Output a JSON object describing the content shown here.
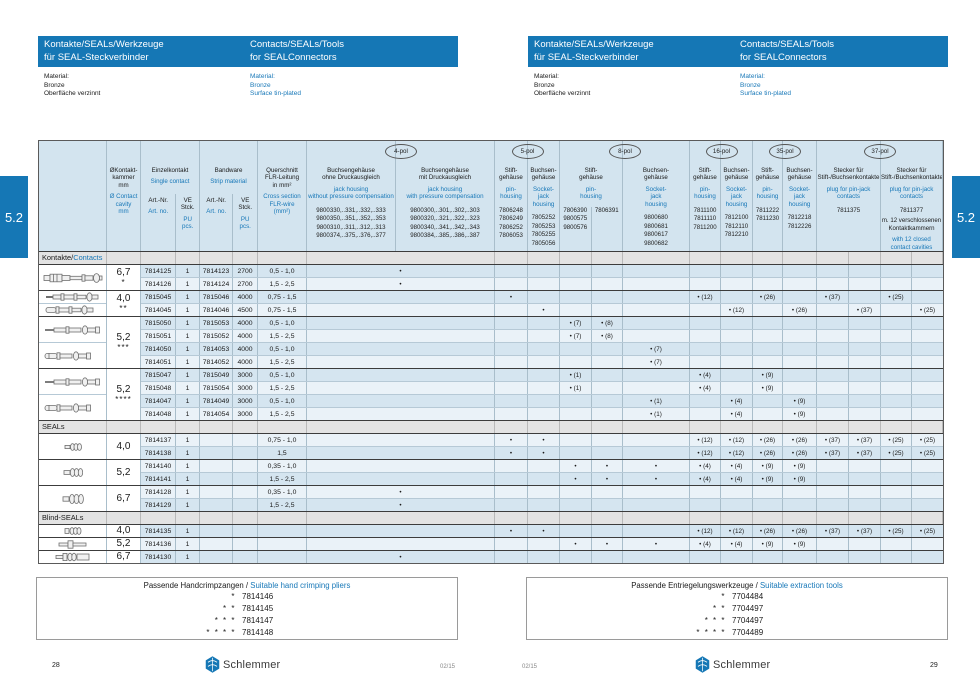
{
  "page": {
    "left_number": "28",
    "right_number": "29",
    "date_code": "02/15",
    "brand": "Schlemmer",
    "section_tab": "5.2"
  },
  "header": {
    "title_de": [
      "Kontakte/SEALs/Werkzeuge",
      "für SEAL-Steckverbinder"
    ],
    "title_en": [
      "Contacts/SEALs/Tools",
      "for SEALConnectors"
    ],
    "material_de": [
      "Material:",
      "Bronze",
      "Oberfläche verzinnt"
    ],
    "material_en": [
      "Material:",
      "Bronze",
      "Surface tin-plated"
    ]
  },
  "table": {
    "columns": {
      "dia_de": [
        "ØKontakt-",
        "kammer",
        "mm"
      ],
      "dia_en": [
        "Ø Contact",
        "cavity",
        "mm"
      ],
      "einzelkontakt_de": "Einzelkontakt",
      "einzelkontakt_en": "Single contact",
      "bandware_de": "Bandware",
      "bandware_en": "Strip material",
      "art_de": "Art.-Nr.",
      "art_en": "Art. no.",
      "ve_de": [
        "VE",
        "Stck."
      ],
      "ve_en": [
        "PU",
        "pcs."
      ],
      "cross_de": [
        "Querschnitt",
        "FLR-Leitung",
        "in mm²"
      ],
      "cross_en": [
        "Cross section",
        "FLR-wire",
        "(mm²)"
      ]
    },
    "pol_groups": [
      {
        "label": "4-pol",
        "cols": [
          {
            "key": "p4a",
            "de": [
              "Buchsengehäuse",
              "ohne Druckausgleich"
            ],
            "en": [
              "jack housing",
              "without pressure compensation"
            ],
            "parts": [
              "9800330,..331,..332,..333",
              "9800350,..351,..352,..353",
              "9800310,..311,..312,..313",
              "9800374,..375,..376,..377"
            ]
          },
          {
            "key": "p4b",
            "de": [
              "Buchsengehäuse",
              "mit Druckausgleich"
            ],
            "en": [
              "jack housing",
              "with pressure compensation"
            ],
            "parts": [
              "9800300,..301,..302,..303",
              "9800320,..321,..322,..323",
              "9800340,..341,..342,..343",
              "9800384,..385,..386,..387"
            ]
          }
        ]
      },
      {
        "label": "5-pol",
        "cols": [
          {
            "key": "p5p",
            "de": [
              "Stift-",
              "gehäuse"
            ],
            "en": [
              "pin-",
              "housing"
            ],
            "parts": [
              "7806248",
              "7806249",
              "7806252",
              "7806053"
            ]
          },
          {
            "key": "p5s",
            "de": [
              "Buchsen-",
              "gehäuse"
            ],
            "en": [
              "Socket-",
              "jack",
              "housing"
            ],
            "parts": [
              "7805252",
              "7805253",
              "7805255",
              "7805056"
            ]
          }
        ]
      },
      {
        "label": "8-pol",
        "cols": [
          {
            "key": "p8p",
            "de": [
              "Stift-",
              "gehäuse"
            ],
            "en": [
              "pin-",
              "housing"
            ],
            "split_parts": [
              [
                "7806390",
                "9800575",
                "9800576"
              ],
              [
                "7806391"
              ]
            ]
          },
          {
            "key": "p8s",
            "de": [
              "Buchsen-",
              "gehäuse"
            ],
            "en": [
              "Socket-",
              "jack",
              "housing"
            ],
            "parts": [
              "9800680",
              "9800681",
              "9800617",
              "9800682"
            ]
          }
        ]
      },
      {
        "label": "16-pol",
        "cols": [
          {
            "key": "p16p",
            "de": [
              "Stift-",
              "gehäuse"
            ],
            "en": [
              "pin-",
              "housing"
            ],
            "parts": [
              "7811100",
              "7811110",
              "7811200"
            ]
          },
          {
            "key": "p16s",
            "de": [
              "Buchsen-",
              "gehäuse"
            ],
            "en": [
              "Socket-",
              "jack",
              "housing"
            ],
            "parts": [
              "7812100",
              "7812110",
              "7812210"
            ]
          }
        ]
      },
      {
        "label": "35-pol",
        "cols": [
          {
            "key": "p35p",
            "de": [
              "Stift-",
              "gehäuse"
            ],
            "en": [
              "pin-",
              "housing"
            ],
            "parts": [
              "7811222",
              "7811230"
            ]
          },
          {
            "key": "p35s",
            "de": [
              "Buchsen-",
              "gehäuse"
            ],
            "en": [
              "Socket-",
              "jack",
              "housing"
            ],
            "parts": [
              "7812218",
              "7812226"
            ]
          }
        ]
      },
      {
        "label": "37-pol",
        "cols": [
          {
            "key": "p37a",
            "de": [
              "Stecker für",
              "Stift-/Buchsenkontakte"
            ],
            "en": [
              "plug for pin-jack",
              "contacts"
            ],
            "parts": [
              "7811375"
            ]
          },
          {
            "key": "p37b",
            "de": [
              "Stecker für",
              "Stift-/Buchsenkontakte"
            ],
            "en": [
              "plug for pin-jack",
              "contacts"
            ],
            "parts": [
              "7811377"
            ],
            "note_de": [
              "m. 12 verschlossenen",
              "Kontaktkammern"
            ],
            "note_en": [
              "with 12 closed",
              "contact cavities"
            ]
          }
        ]
      }
    ],
    "sections": [
      {
        "label_de": "Kontakte/",
        "label_en": "Contacts",
        "groups": [
          {
            "dia": "6,7",
            "stars": "*",
            "blocks": [
              {
                "icon": "contact-socket-large",
                "rows": [
                  {
                    "ek": "7814125",
                    "ekve": "1",
                    "bw": "7814123",
                    "bwve": "2700",
                    "cs": "0,5 - 1,0",
                    "dots": {
                      "p4": ""
                    }
                  },
                  {
                    "ek": "7814126",
                    "ekve": "1",
                    "bw": "7814124",
                    "bwve": "2700",
                    "cs": "1,5 - 2,5",
                    "dots": {
                      "p4": ""
                    }
                  }
                ]
              }
            ]
          },
          {
            "dia": "4,0",
            "stars": "**",
            "blocks": [
              {
                "icon": "contact-pin-small",
                "rows": [
                  {
                    "ek": "7815045",
                    "ekve": "1",
                    "bw": "7815046",
                    "bwve": "4000",
                    "cs": "0,75 - 1,5",
                    "dots": {
                      "p5p": "",
                      "p16p": "(12)",
                      "p35p": "(26)",
                      "p37a1": "(37)",
                      "p37b1": "(25)"
                    }
                  }
                ]
              },
              {
                "icon": "contact-socket-small",
                "rows": [
                  {
                    "ek": "7814045",
                    "ekve": "1",
                    "bw": "7814046",
                    "bwve": "4500",
                    "cs": "0,75 - 1,5",
                    "dots": {
                      "p5s": "",
                      "p16s": "(12)",
                      "p35s": "(26)",
                      "p37a2": "(37)",
                      "p37b2": "(25)"
                    }
                  }
                ]
              }
            ]
          },
          {
            "dia": "5,2",
            "stars": "***",
            "blocks": [
              {
                "icon": "contact-pin-mid",
                "rows": [
                  {
                    "ek": "7815050",
                    "ekve": "1",
                    "bw": "7815053",
                    "bwve": "4000",
                    "cs": "0,5 - 1,0",
                    "dots": {
                      "p8pa": "(7)",
                      "p8pb": "(8)"
                    }
                  },
                  {
                    "ek": "7815051",
                    "ekve": "1",
                    "bw": "7815052",
                    "bwve": "4000",
                    "cs": "1,5 - 2,5",
                    "dots": {
                      "p8pa": "(7)",
                      "p8pb": "(8)"
                    }
                  }
                ]
              },
              {
                "icon": "contact-socket-mid",
                "rows": [
                  {
                    "ek": "7814050",
                    "ekve": "1",
                    "bw": "7814053",
                    "bwve": "4000",
                    "cs": "0,5 - 1,0",
                    "dots": {
                      "p8s": "(7)"
                    }
                  },
                  {
                    "ek": "7814051",
                    "ekve": "1",
                    "bw": "7814052",
                    "bwve": "4000",
                    "cs": "1,5 - 2,5",
                    "dots": {
                      "p8s": "(7)"
                    }
                  }
                ]
              }
            ]
          },
          {
            "dia": "5,2",
            "stars": "****",
            "blocks": [
              {
                "icon": "contact-pin-mid",
                "rows": [
                  {
                    "ek": "7815047",
                    "ekve": "1",
                    "bw": "7815049",
                    "bwve": "3000",
                    "cs": "0,5 - 1,0",
                    "dots": {
                      "p8pa": "(1)",
                      "p16p": "(4)",
                      "p35p": "(9)"
                    }
                  },
                  {
                    "ek": "7815048",
                    "ekve": "1",
                    "bw": "7815054",
                    "bwve": "3000",
                    "cs": "1,5 - 2,5",
                    "dots": {
                      "p8pa": "(1)",
                      "p16p": "(4)",
                      "p35p": "(9)"
                    }
                  }
                ]
              },
              {
                "icon": "contact-socket-mid",
                "rows": [
                  {
                    "ek": "7814047",
                    "ekve": "1",
                    "bw": "7814049",
                    "bwve": "3000",
                    "cs": "0,5 - 1,0",
                    "dots": {
                      "p8s": "(1)",
                      "p16s": "(4)",
                      "p35s": "(9)"
                    }
                  },
                  {
                    "ek": "7814048",
                    "ekve": "1",
                    "bw": "7814054",
                    "bwve": "3000",
                    "cs": "1,5 - 2,5",
                    "dots": {
                      "p8s": "(1)",
                      "p16s": "(4)",
                      "p35s": "(9)"
                    }
                  }
                ]
              }
            ]
          }
        ]
      },
      {
        "label_de": "SEALs",
        "label_en": "",
        "groups": [
          {
            "dia": "4,0",
            "stars": "",
            "blocks": [
              {
                "icon": "seal-small",
                "rows": [
                  {
                    "ek": "7814137",
                    "ekve": "1",
                    "bw": "",
                    "bwve": "",
                    "cs": "0,75 - 1,0",
                    "dots": {
                      "p5p": "",
                      "p5s": "",
                      "p16p": "(12)",
                      "p16s": "(12)",
                      "p35p": "(26)",
                      "p35s": "(26)",
                      "p37a1": "(37)",
                      "p37a2": "(37)",
                      "p37b1": "(25)",
                      "p37b2": "(25)"
                    }
                  },
                  {
                    "ek": "7814138",
                    "ekve": "1",
                    "bw": "",
                    "bwve": "",
                    "cs": "1,5",
                    "dots": {
                      "p5p": "",
                      "p5s": "",
                      "p16p": "(12)",
                      "p16s": "(12)",
                      "p35p": "(26)",
                      "p35s": "(26)",
                      "p37a1": "(37)",
                      "p37a2": "(37)",
                      "p37b1": "(25)",
                      "p37b2": "(25)"
                    }
                  }
                ]
              }
            ]
          },
          {
            "dia": "5,2",
            "stars": "",
            "blocks": [
              {
                "icon": "seal-mid",
                "rows": [
                  {
                    "ek": "7814140",
                    "ekve": "1",
                    "bw": "",
                    "bwve": "",
                    "cs": "0,35 - 1,0",
                    "dots": {
                      "p8pa": "",
                      "p8pb": "",
                      "p8s": "",
                      "p16p": "(4)",
                      "p16s": "(4)",
                      "p35p": "(9)",
                      "p35s": "(9)"
                    }
                  },
                  {
                    "ek": "7814141",
                    "ekve": "1",
                    "bw": "",
                    "bwve": "",
                    "cs": "1,5 - 2,5",
                    "dots": {
                      "p8pa": "",
                      "p8pb": "",
                      "p8s": "",
                      "p16p": "(4)",
                      "p16s": "(4)",
                      "p35p": "(9)",
                      "p35s": "(9)"
                    }
                  }
                ]
              }
            ]
          },
          {
            "dia": "6,7",
            "stars": "",
            "blocks": [
              {
                "icon": "seal-large",
                "rows": [
                  {
                    "ek": "7814128",
                    "ekve": "1",
                    "bw": "",
                    "bwve": "",
                    "cs": "0,35 - 1,0",
                    "dots": {
                      "p4": ""
                    }
                  },
                  {
                    "ek": "7814129",
                    "ekve": "1",
                    "bw": "",
                    "bwve": "",
                    "cs": "1,5 - 2,5",
                    "dots": {
                      "p4": ""
                    }
                  }
                ]
              }
            ]
          }
        ]
      },
      {
        "label_de": "Blind-SEALs",
        "label_en": "",
        "groups": [
          {
            "dia": "4,0",
            "stars": "",
            "blocks": [
              {
                "icon": "blind-seal-small",
                "rows": [
                  {
                    "ek": "7814135",
                    "ekve": "1",
                    "bw": "",
                    "bwve": "",
                    "cs": "",
                    "dots": {
                      "p5p": "",
                      "p5s": "",
                      "p16p": "(12)",
                      "p16s": "(12)",
                      "p35p": "(26)",
                      "p35s": "(26)",
                      "p37a1": "(37)",
                      "p37a2": "(37)",
                      "p37b1": "(25)",
                      "p37b2": "(25)"
                    }
                  }
                ]
              }
            ]
          },
          {
            "dia": "5,2",
            "stars": "",
            "blocks": [
              {
                "icon": "blind-seal-mid",
                "rows": [
                  {
                    "ek": "7814136",
                    "ekve": "1",
                    "bw": "",
                    "bwve": "",
                    "cs": "",
                    "dots": {
                      "p8pa": "",
                      "p8pb": "",
                      "p8s": "",
                      "p16p": "(4)",
                      "p16s": "(4)",
                      "p35p": "(9)",
                      "p35s": "(9)"
                    }
                  }
                ]
              }
            ]
          },
          {
            "dia": "6,7",
            "stars": "",
            "blocks": [
              {
                "icon": "blind-seal-large",
                "rows": [
                  {
                    "ek": "7814130",
                    "ekve": "1",
                    "bw": "",
                    "bwve": "",
                    "cs": "",
                    "dots": {
                      "p4": ""
                    }
                  }
                ]
              }
            ]
          }
        ]
      }
    ]
  },
  "tool_boxes": [
    {
      "title_de": "Passende Handcrimpzangen / ",
      "title_en": "Suitable hand crimping pliers",
      "rows": [
        {
          "stars": "*",
          "number": "7814146"
        },
        {
          "stars": "* *",
          "number": "7814145"
        },
        {
          "stars": "* * *",
          "number": "7814147"
        },
        {
          "stars": "* * * *",
          "number": "7814148"
        }
      ]
    },
    {
      "title_de": "Passende Entriegelungswerkzeuge / ",
      "title_en": "Suitable extraction tools",
      "rows": [
        {
          "stars": "*",
          "number": "7704484"
        },
        {
          "stars": "* *",
          "number": "7704497"
        },
        {
          "stars": "* * *",
          "number": "7704497"
        },
        {
          "stars": "* * * *",
          "number": "7704489"
        }
      ]
    }
  ],
  "colors": {
    "brand_blue": "#1577b5",
    "accent_text_blue": "#1878b8",
    "header_bg": "#d3e4ef",
    "row_dark": "#d5e5f0",
    "row_light": "#eaf2f8",
    "band_gray": "#e3e3e3"
  }
}
